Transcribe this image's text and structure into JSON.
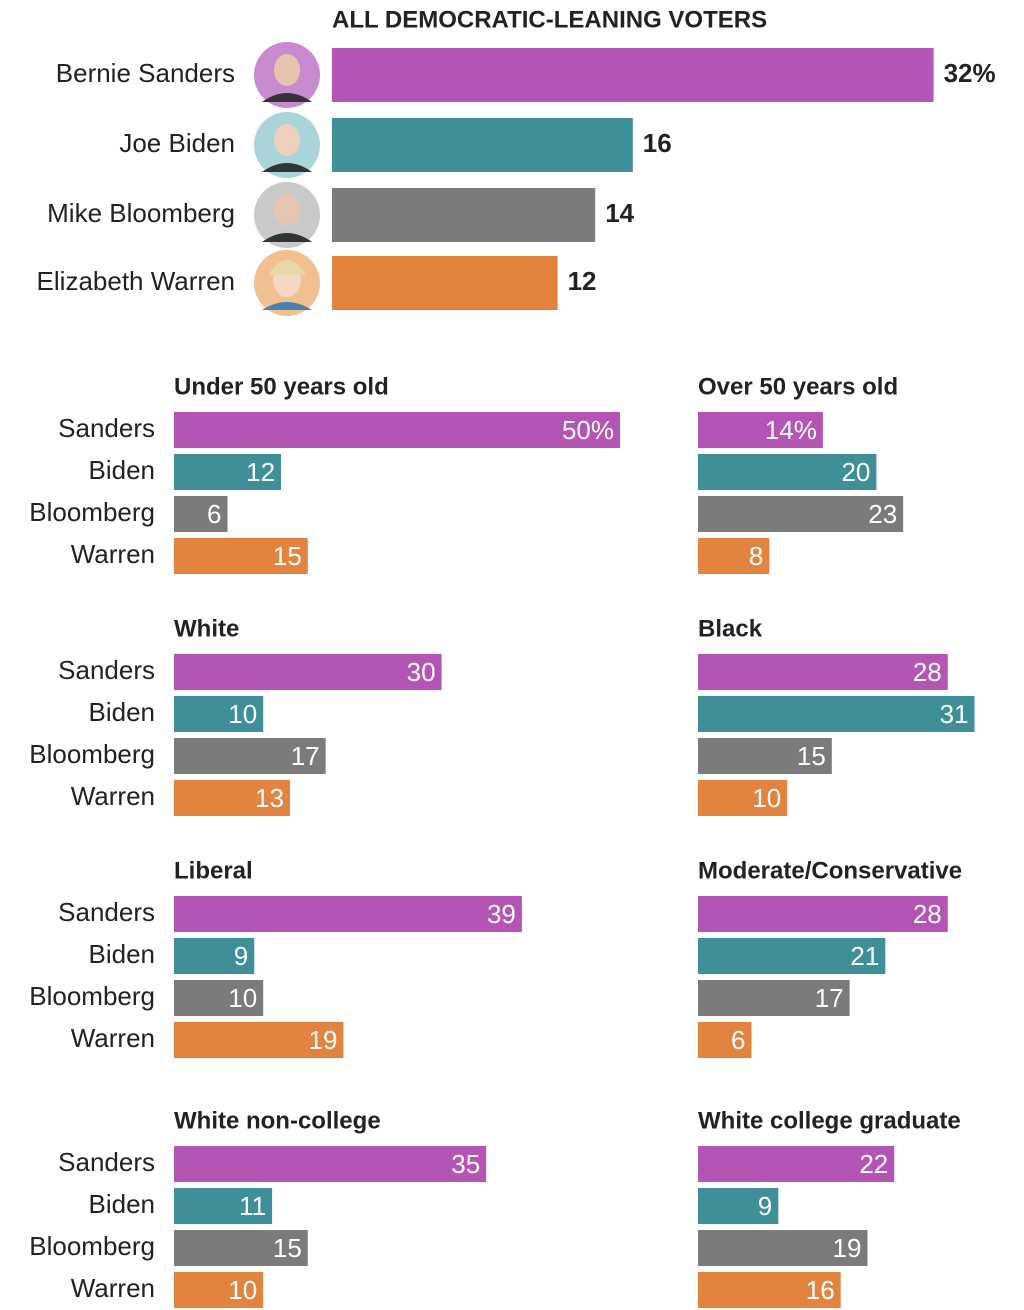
{
  "chart_data": [
    {
      "type": "bar",
      "title": "ALL DEMOCRATIC-LEANING VOTERS",
      "categories": [
        "Bernie Sanders",
        "Joe Biden",
        "Mike Bloomberg",
        "Elizabeth Warren"
      ],
      "values": [
        32,
        16,
        14,
        12
      ],
      "value_labels": [
        "32%",
        "16",
        "14",
        "12"
      ],
      "colors": [
        "#b455b6",
        "#3f8f99",
        "#7b7b7b",
        "#e2843f"
      ]
    },
    {
      "type": "bar",
      "categories": [
        "Sanders",
        "Biden",
        "Bloomberg",
        "Warren"
      ],
      "colors": [
        "#b455b6",
        "#3f8f99",
        "#7b7b7b",
        "#e2843f"
      ],
      "series": [
        {
          "name": "Under 50 years old",
          "values": [
            50,
            12,
            6,
            15
          ],
          "value_labels": [
            "50%",
            "12",
            "6",
            "15"
          ]
        },
        {
          "name": "Over 50 years old",
          "values": [
            14,
            20,
            23,
            8
          ],
          "value_labels": [
            "14%",
            "20",
            "23",
            "8"
          ]
        }
      ]
    },
    {
      "type": "bar",
      "categories": [
        "Sanders",
        "Biden",
        "Bloomberg",
        "Warren"
      ],
      "colors": [
        "#b455b6",
        "#3f8f99",
        "#7b7b7b",
        "#e2843f"
      ],
      "series": [
        {
          "name": "White",
          "values": [
            30,
            10,
            17,
            13
          ]
        },
        {
          "name": "Black",
          "values": [
            28,
            31,
            15,
            10
          ]
        }
      ]
    },
    {
      "type": "bar",
      "categories": [
        "Sanders",
        "Biden",
        "Bloomberg",
        "Warren"
      ],
      "colors": [
        "#b455b6",
        "#3f8f99",
        "#7b7b7b",
        "#e2843f"
      ],
      "series": [
        {
          "name": "Liberal",
          "values": [
            39,
            9,
            10,
            19
          ]
        },
        {
          "name": "Moderate/Conservative",
          "values": [
            28,
            21,
            17,
            6
          ]
        }
      ]
    },
    {
      "type": "bar",
      "categories": [
        "Sanders",
        "Biden",
        "Bloomberg",
        "Warren"
      ],
      "colors": [
        "#b455b6",
        "#3f8f99",
        "#7b7b7b",
        "#e2843f"
      ],
      "series": [
        {
          "name": "White non-college",
          "values": [
            35,
            11,
            15,
            10
          ]
        },
        {
          "name": "White college graduate",
          "values": [
            22,
            9,
            19,
            16
          ]
        }
      ]
    }
  ]
}
